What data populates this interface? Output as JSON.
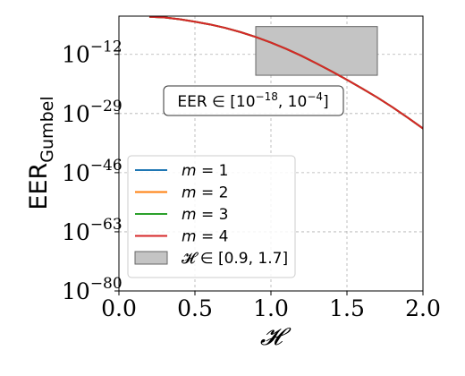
{
  "chart_data": {
    "type": "line",
    "xlabel": "𝓗",
    "ylabel_main": "EER",
    "ylabel_sub": "Gumbel",
    "xlim": [
      0.0,
      2.0
    ],
    "ylim_log10": [
      -80,
      -1
    ],
    "x_ticks": [
      0.0,
      0.5,
      1.0,
      1.5,
      2.0
    ],
    "x_tick_labels": [
      "0.0",
      "0.5",
      "1.0",
      "1.5",
      "2.0"
    ],
    "y_ticks_log10": [
      -80,
      -63,
      -46,
      -29,
      -12
    ],
    "y_tick_labels": [
      {
        "base": "10",
        "exp": "−80"
      },
      {
        "base": "10",
        "exp": "−63"
      },
      {
        "base": "10",
        "exp": "−46"
      },
      {
        "base": "10",
        "exp": "−29"
      },
      {
        "base": "10",
        "exp": "−12"
      }
    ],
    "y_scale": "log",
    "grid": true,
    "x": [
      0.2,
      0.3,
      0.4,
      0.5,
      0.6,
      0.7,
      0.8,
      0.9,
      1.0,
      1.1,
      1.2,
      1.3,
      1.4,
      1.5,
      1.6,
      1.7,
      1.8,
      1.9,
      2.0
    ],
    "series": [
      {
        "name": "m = 1",
        "color": "#1f77b4",
        "log10_values": [
          -1.2,
          -1.4,
          -1.9,
          -2.6,
          -3.4,
          -4.4,
          -5.6,
          -7.0,
          -8.6,
          -10.4,
          -12.4,
          -14.6,
          -16.9,
          -19.3,
          -21.8,
          -24.4,
          -27.2,
          -30.2,
          -33.3
        ]
      },
      {
        "name": "m = 2",
        "color": "#ff7f0e",
        "log10_values": [
          -1.2,
          -1.4,
          -1.9,
          -2.6,
          -3.4,
          -4.4,
          -5.6,
          -7.0,
          -8.6,
          -10.4,
          -12.4,
          -14.6,
          -16.9,
          -19.3,
          -21.8,
          -24.4,
          -27.2,
          -30.2,
          -33.3
        ]
      },
      {
        "name": "m = 3",
        "color": "#2ca02c",
        "log10_values": [
          -1.2,
          -1.4,
          -1.9,
          -2.6,
          -3.4,
          -4.4,
          -5.6,
          -7.0,
          -8.6,
          -10.4,
          -12.4,
          -14.6,
          -16.9,
          -19.3,
          -21.8,
          -24.4,
          -27.2,
          -30.2,
          -33.3
        ]
      },
      {
        "name": "m = 4",
        "color": "#d62728",
        "log10_values": [
          -1.2,
          -1.4,
          -1.9,
          -2.6,
          -3.4,
          -4.4,
          -5.6,
          -7.0,
          -8.6,
          -10.4,
          -12.4,
          -14.6,
          -16.9,
          -19.3,
          -21.8,
          -24.4,
          -27.2,
          -30.2,
          -33.3
        ]
      }
    ],
    "shaded_region": {
      "label": "𝓗 ∈ [0.9, 1.7]",
      "x_range": [
        0.9,
        1.7
      ],
      "log10_y_range": [
        -18,
        -4
      ],
      "fill": "#c4c4c4",
      "stroke": "#666666"
    },
    "annotation": {
      "prefix": "EER ∈ [10",
      "exp1": "−18",
      "middle": ", 10",
      "exp2": "−4",
      "suffix": "]"
    },
    "legend_position": "lower-left",
    "legend_entries": [
      {
        "label_var": "m",
        "label_rest": " = 1",
        "kind": "line",
        "color": "#1f77b4"
      },
      {
        "label_var": "m",
        "label_rest": " = 2",
        "kind": "line",
        "color": "#ff7f0e"
      },
      {
        "label_var": "m",
        "label_rest": " = 3",
        "kind": "line",
        "color": "#2ca02c"
      },
      {
        "label_var": "m",
        "label_rest": " = 4",
        "kind": "line",
        "color": "#d62728"
      },
      {
        "label_var": "",
        "label_rest": "𝓗 ∈ [0.9, 1.7]",
        "kind": "patch",
        "color": "#c4c4c4"
      }
    ]
  }
}
